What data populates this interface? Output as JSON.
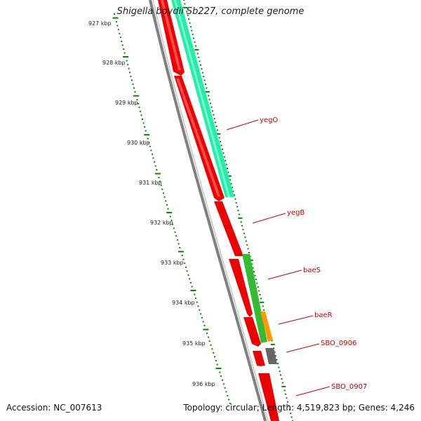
{
  "title": "Shigella boydii Sb227, complete genome",
  "accession": "Accession: NC_007613",
  "summary": "Topology: circular; Length: 4,519,823 bp; Genes: 4,246",
  "ticks": [
    "927 kbp",
    "928 kbp",
    "929 kbp",
    "930 kbp",
    "931 kbp",
    "932 kbp",
    "933 kbp",
    "934 kbp",
    "935 kbp",
    "936 kbp"
  ],
  "genes": [
    {
      "name": "yegO",
      "color": "#cc0000"
    },
    {
      "name": "yegB",
      "color": "#cc0000"
    },
    {
      "name": "baeS",
      "color": "#cc0000"
    },
    {
      "name": "baeR",
      "color": "#cc0000"
    },
    {
      "name": "SBO_0906",
      "color": "#cc0000"
    },
    {
      "name": "SBO_0907",
      "color": "#cc0000"
    }
  ],
  "colors": {
    "cds": "#ee0000",
    "cds_highlight": "#ff6a6a",
    "backbone": "#808080",
    "blast_teal": "#22eeaa",
    "blast_green": "#33bb33",
    "blast_orange": "#ff9900",
    "blast_gray": "#666666",
    "ticks": "#008800",
    "label": "#cc0000"
  }
}
